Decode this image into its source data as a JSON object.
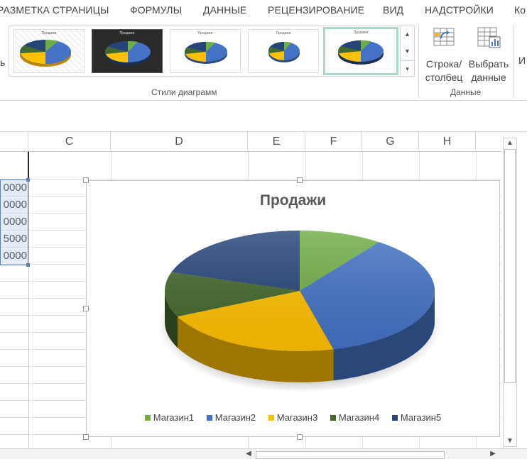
{
  "ribbon_tabs": [
    "РАЗМЕТКА СТРАНИЦЫ",
    "ФОРМУЛЫ",
    "ДАННЫЕ",
    "РЕЦЕНЗИРОВАНИЕ",
    "ВИД",
    "НАДСТРОЙКИ",
    "Ко"
  ],
  "left_stub": "ь",
  "chart_styles": {
    "label": "Стили диаграмм",
    "thumb_title": "Продажи",
    "selected_index": 4
  },
  "data_group": {
    "label": "Данные",
    "switch_row_col": [
      "Строка/",
      "столбец"
    ],
    "select_data": [
      "Выбрать",
      "данные"
    ],
    "next_stub": "И"
  },
  "columns": [
    "C",
    "D",
    "E",
    "F",
    "G",
    "H"
  ],
  "cells": [
    "0000",
    "0000",
    "0000",
    "5000",
    "0000"
  ],
  "colors": {
    "magazin1": "#70ad47",
    "magazin2": "#4472c4",
    "magazin3": "#ffc000",
    "magazin4": "#43682b",
    "magazin5": "#264478"
  },
  "chart_data": {
    "type": "pie",
    "title": "Продажи",
    "labels": [
      "Магазин1",
      "Магазин2",
      "Магазин3",
      "Магазин4",
      "Магазин5"
    ],
    "values": [
      10,
      36,
      22,
      12,
      20
    ],
    "legend": "bottom",
    "style": "3d"
  }
}
